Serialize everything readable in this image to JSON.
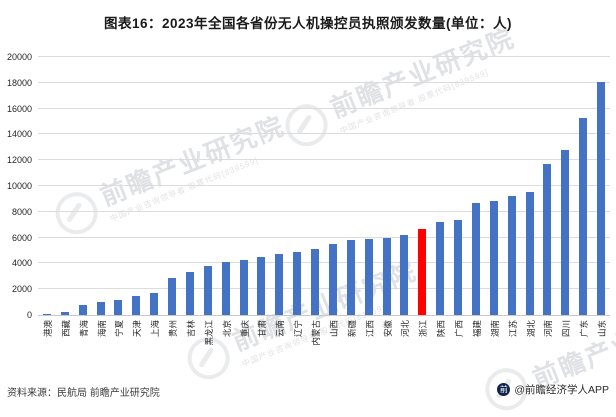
{
  "title": "图表16：2023年全国各省份无人机操控员执照颁发数量(单位：人)",
  "chart_data": {
    "type": "bar",
    "title": "2023年全国各省份无人机操控员执照颁发数量",
    "unit": "人",
    "categories": [
      "港澳",
      "西藏",
      "青海",
      "海南",
      "宁夏",
      "天津",
      "上海",
      "贵州",
      "吉林",
      "黑龙江",
      "北京",
      "重庆",
      "甘肃",
      "云南",
      "辽宁",
      "内蒙古",
      "山西",
      "新疆",
      "江西",
      "安徽",
      "河北",
      "浙江",
      "陕西",
      "广西",
      "福建",
      "湖南",
      "江苏",
      "湖北",
      "河南",
      "四川",
      "广东",
      "山东"
    ],
    "values": [
      100,
      250,
      800,
      1000,
      1200,
      1500,
      1700,
      2900,
      3300,
      3800,
      4100,
      4300,
      4500,
      4700,
      4900,
      5100,
      5500,
      5800,
      5900,
      6000,
      6200,
      6700,
      7200,
      7400,
      8700,
      8800,
      9200,
      9500,
      11700,
      12800,
      15300,
      18100
    ],
    "highlight_category": "浙江",
    "highlight_index": 21,
    "bar_color": "#4472C4",
    "highlight_color": "#FF0000",
    "ylim": [
      0,
      20000
    ],
    "ytick_step": 2000,
    "yticklabels": [
      "0",
      "2000",
      "4000",
      "6000",
      "8000",
      "10000",
      "12000",
      "14000",
      "16000",
      "18000",
      "20000"
    ],
    "grid": true,
    "legend": "none",
    "xlabel": "",
    "ylabel": ""
  },
  "watermark": {
    "text": "前瞻产业研究院",
    "sub": "中国产业咨询领导者 股票代码[839599]"
  },
  "footer": {
    "source": "资料来源：民航局 前瞻产业研究院",
    "brand": "@前瞻经济学人APP",
    "brand_logo_glyph": "前"
  }
}
